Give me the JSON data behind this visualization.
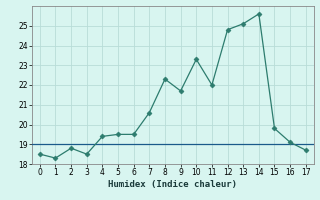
{
  "x": [
    0,
    1,
    2,
    3,
    4,
    5,
    6,
    7,
    8,
    9,
    10,
    11,
    12,
    13,
    14,
    15,
    16,
    17
  ],
  "y": [
    18.5,
    18.3,
    18.8,
    18.5,
    19.4,
    19.5,
    19.5,
    20.6,
    22.3,
    21.7,
    23.3,
    22.0,
    24.8,
    25.1,
    25.6,
    19.8,
    19.1,
    18.7
  ],
  "title": "",
  "xlabel": "Humidex (Indice chaleur)",
  "ylabel": "",
  "xlim": [
    -0.5,
    17.5
  ],
  "ylim": [
    18,
    26
  ],
  "yticks": [
    18,
    19,
    20,
    21,
    22,
    23,
    24,
    25
  ],
  "xticks": [
    0,
    1,
    2,
    3,
    4,
    5,
    6,
    7,
    8,
    9,
    10,
    11,
    12,
    13,
    14,
    15,
    16,
    17
  ],
  "line_color": "#2d7c6e",
  "marker_color": "#2d7c6e",
  "bg_color": "#d8f5f0",
  "grid_color": "#b8ddd8",
  "hline_y": 19.0,
  "hline_color": "#1a5a8a"
}
